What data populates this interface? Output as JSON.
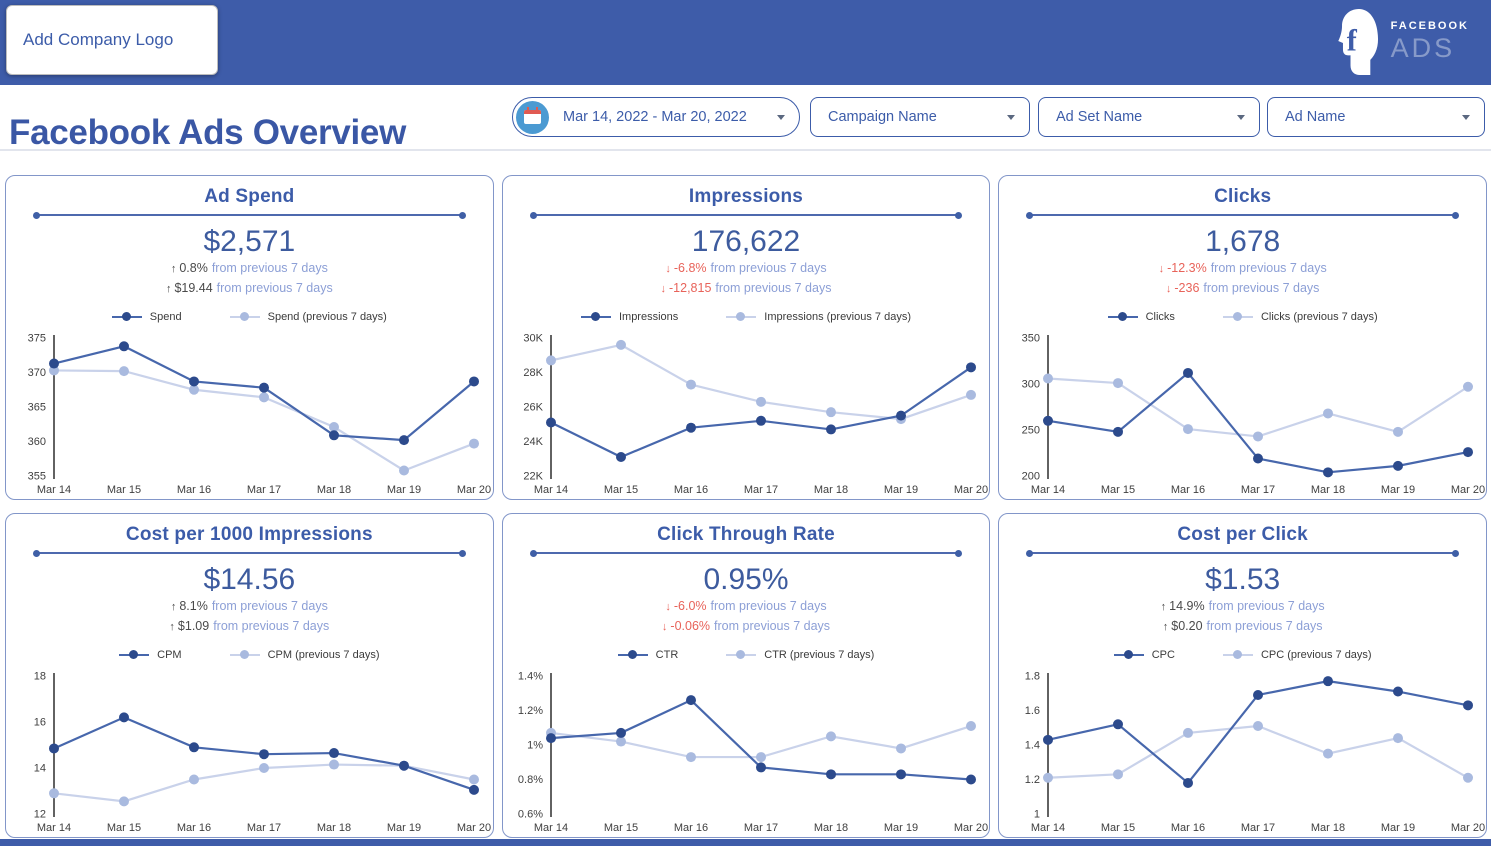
{
  "header": {
    "logo_button_label": "Add Company Logo",
    "brand_top": "FACEBOOK",
    "brand_bottom": "ADS"
  },
  "toolbar": {
    "page_title": "Facebook Ads Overview",
    "date_range": "Mar 14, 2022 - Mar 20, 2022",
    "filters": [
      {
        "label": "Campaign Name"
      },
      {
        "label": "Ad Set Name"
      },
      {
        "label": "Ad Name"
      }
    ]
  },
  "colors": {
    "brand_blue": "#3e5ca9",
    "title_blue": "#3c5ca9",
    "kpi_blue": "#3d5b9e",
    "muted_periwinkle": "#8c9fd6",
    "positive_gray": "#4a4a4a",
    "negative_red": "#e8635a",
    "series_current_line": "#4767ac",
    "series_current_dot": "#2c4a8c",
    "series_previous_line": "#c9d2ea",
    "series_previous_dot": "#a9badf",
    "axis": "#3b3b3b",
    "card_border": "#8296c9",
    "calendar_icon_bg": "#4b9ad2"
  },
  "cards": [
    {
      "title": "Ad Spend",
      "value": "$2,571",
      "deltas": [
        {
          "dir": "up",
          "value": "0.8%",
          "suffix": "from previous 7 days"
        },
        {
          "dir": "up",
          "value": "$19.44",
          "suffix": "from previous 7 days"
        }
      ],
      "legend": [
        "Spend",
        "Spend (previous 7 days)"
      ]
    },
    {
      "title": "Impressions",
      "value": "176,622",
      "deltas": [
        {
          "dir": "down",
          "value": "-6.8%",
          "suffix": "from previous 7 days"
        },
        {
          "dir": "down",
          "value": "-12,815",
          "suffix": "from previous 7 days"
        }
      ],
      "legend": [
        "Impressions",
        "Impressions (previous 7 days)"
      ]
    },
    {
      "title": "Clicks",
      "value": "1,678",
      "deltas": [
        {
          "dir": "down",
          "value": "-12.3%",
          "suffix": "from previous 7 days"
        },
        {
          "dir": "down",
          "value": "-236",
          "suffix": "from previous 7 days"
        }
      ],
      "legend": [
        "Clicks",
        "Clicks (previous 7 days)"
      ]
    },
    {
      "title": "Cost per 1000 Impressions",
      "value": "$14.56",
      "deltas": [
        {
          "dir": "up",
          "value": "8.1%",
          "suffix": "from previous 7 days"
        },
        {
          "dir": "up",
          "value": "$1.09",
          "suffix": "from previous 7 days"
        }
      ],
      "legend": [
        "CPM",
        "CPM (previous 7 days)"
      ]
    },
    {
      "title": "Click Through Rate",
      "value": "0.95%",
      "deltas": [
        {
          "dir": "down",
          "value": "-6.0%",
          "suffix": "from previous 7 days"
        },
        {
          "dir": "down",
          "value": "-0.06%",
          "suffix": "from previous 7 days"
        }
      ],
      "legend": [
        "CTR",
        "CTR (previous 7 days)"
      ]
    },
    {
      "title": "Cost per Click",
      "value": "$1.53",
      "deltas": [
        {
          "dir": "up",
          "value": "14.9%",
          "suffix": "from previous 7 days"
        },
        {
          "dir": "up",
          "value": "$0.20",
          "suffix": "from previous 7 days"
        }
      ],
      "legend": [
        "CPC",
        "CPC (previous 7 days)"
      ]
    }
  ],
  "chart_data": [
    {
      "type": "line",
      "title": "Ad Spend",
      "x": [
        "Mar 14",
        "Mar 15",
        "Mar 16",
        "Mar 17",
        "Mar 18",
        "Mar 19",
        "Mar 20"
      ],
      "ylim": [
        355,
        375
      ],
      "yticks": [
        355,
        360,
        365,
        370,
        375
      ],
      "ytick_labels": [
        "355",
        "360",
        "365",
        "370",
        "375"
      ],
      "grid": false,
      "legend_position": "top",
      "series": [
        {
          "name": "Spend",
          "values": [
            371.3,
            373.8,
            368.7,
            367.8,
            360.9,
            360.2,
            368.7
          ]
        },
        {
          "name": "Spend (previous 7 days)",
          "values": [
            370.3,
            370.2,
            367.5,
            366.4,
            362.1,
            355.8,
            359.7
          ]
        }
      ]
    },
    {
      "type": "line",
      "title": "Impressions",
      "x": [
        "Mar 14",
        "Mar 15",
        "Mar 16",
        "Mar 17",
        "Mar 18",
        "Mar 19",
        "Mar 20"
      ],
      "ylim": [
        22000,
        30000
      ],
      "yticks": [
        22000,
        24000,
        26000,
        28000,
        30000
      ],
      "ytick_labels": [
        "22K",
        "24K",
        "26K",
        "28K",
        "30K"
      ],
      "grid": false,
      "legend_position": "top",
      "series": [
        {
          "name": "Impressions",
          "values": [
            25100,
            23100,
            24800,
            25200,
            24700,
            25500,
            28300
          ]
        },
        {
          "name": "Impressions (previous 7 days)",
          "values": [
            28700,
            29600,
            27300,
            26300,
            25700,
            25300,
            26700
          ]
        }
      ]
    },
    {
      "type": "line",
      "title": "Clicks",
      "x": [
        "Mar 14",
        "Mar 15",
        "Mar 16",
        "Mar 17",
        "Mar 18",
        "Mar 19",
        "Mar 20"
      ],
      "ylim": [
        200,
        350
      ],
      "yticks": [
        200,
        250,
        300,
        350
      ],
      "ytick_labels": [
        "200",
        "250",
        "300",
        "350"
      ],
      "grid": false,
      "legend_position": "top",
      "series": [
        {
          "name": "Clicks",
          "values": [
            260,
            248,
            312,
            219,
            204,
            211,
            226
          ]
        },
        {
          "name": "Clicks (previous 7 days)",
          "values": [
            306,
            301,
            251,
            243,
            268,
            248,
            297
          ]
        }
      ]
    },
    {
      "type": "line",
      "title": "Cost per 1000 Impressions",
      "x": [
        "Mar 14",
        "Mar 15",
        "Mar 16",
        "Mar 17",
        "Mar 18",
        "Mar 19",
        "Mar 20"
      ],
      "ylim": [
        12,
        18
      ],
      "yticks": [
        12,
        14,
        16,
        18
      ],
      "ytick_labels": [
        "12",
        "14",
        "16",
        "18"
      ],
      "grid": false,
      "legend_position": "top",
      "series": [
        {
          "name": "CPM",
          "values": [
            14.85,
            16.2,
            14.9,
            14.6,
            14.65,
            14.1,
            13.05
          ]
        },
        {
          "name": "CPM (previous 7 days)",
          "values": [
            12.9,
            12.55,
            13.5,
            14.0,
            14.15,
            14.1,
            13.5
          ]
        }
      ]
    },
    {
      "type": "line",
      "title": "Click Through Rate",
      "x": [
        "Mar 14",
        "Mar 15",
        "Mar 16",
        "Mar 17",
        "Mar 18",
        "Mar 19",
        "Mar 20"
      ],
      "ylim": [
        0.6,
        1.4
      ],
      "yticks": [
        0.6,
        0.8,
        1.0,
        1.2,
        1.4
      ],
      "ytick_labels": [
        "0.6%",
        "0.8%",
        "1%",
        "1.2%",
        "1.4%"
      ],
      "grid": false,
      "legend_position": "top",
      "series": [
        {
          "name": "CTR",
          "values": [
            1.04,
            1.07,
            1.26,
            0.87,
            0.83,
            0.83,
            0.8
          ]
        },
        {
          "name": "CTR (previous 7 days)",
          "values": [
            1.07,
            1.02,
            0.93,
            0.93,
            1.05,
            0.98,
            1.11
          ]
        }
      ]
    },
    {
      "type": "line",
      "title": "Cost per Click",
      "x": [
        "Mar 14",
        "Mar 15",
        "Mar 16",
        "Mar 17",
        "Mar 18",
        "Mar 19",
        "Mar 20"
      ],
      "ylim": [
        1,
        1.8
      ],
      "yticks": [
        1,
        1.2,
        1.4,
        1.6,
        1.8
      ],
      "ytick_labels": [
        "1",
        "1.2",
        "1.4",
        "1.6",
        "1.8"
      ],
      "grid": false,
      "legend_position": "top",
      "series": [
        {
          "name": "CPC",
          "values": [
            1.43,
            1.52,
            1.18,
            1.69,
            1.77,
            1.71,
            1.63
          ]
        },
        {
          "name": "CPC (previous 7 days)",
          "values": [
            1.21,
            1.23,
            1.47,
            1.51,
            1.35,
            1.44,
            1.21
          ]
        }
      ]
    }
  ]
}
